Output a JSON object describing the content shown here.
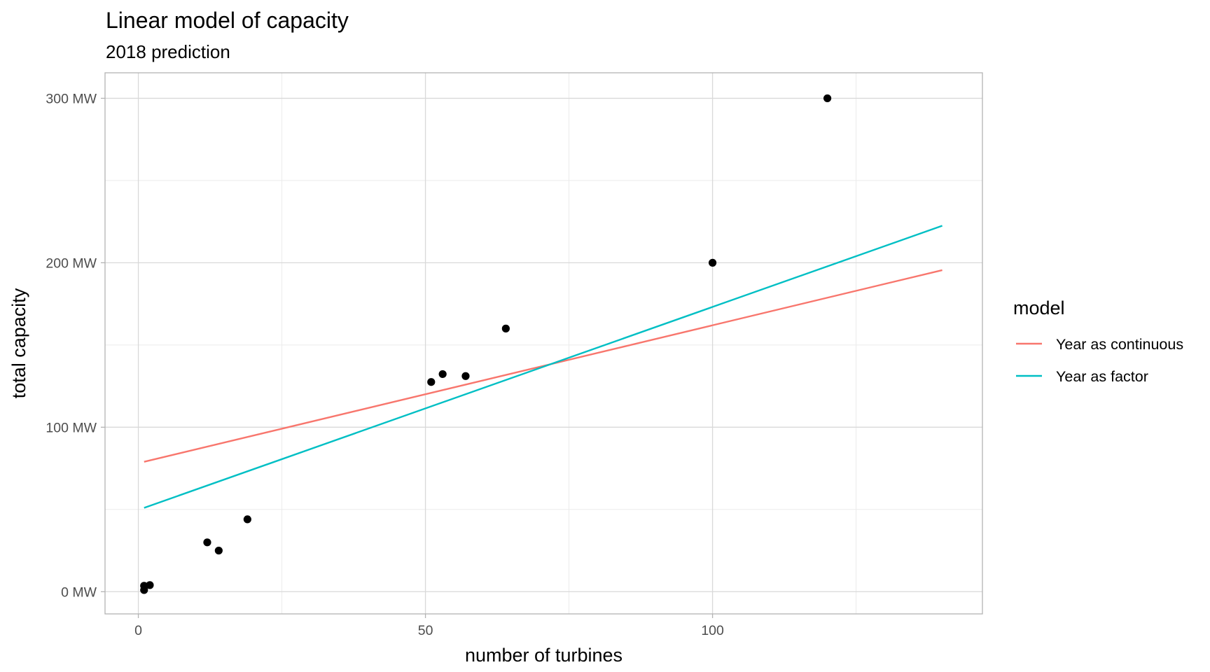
{
  "chart_data": {
    "type": "scatter",
    "title": "Linear model of capacity",
    "subtitle": "2018 prediction",
    "xlabel": "number of turbines",
    "ylabel": "total capacity",
    "xlim": [
      -5.8,
      147
    ],
    "ylim": [
      -13.5,
      315.5
    ],
    "x_ticks": [
      {
        "value": 0,
        "label": "0"
      },
      {
        "value": 50,
        "label": "50"
      },
      {
        "value": 100,
        "label": "100"
      }
    ],
    "x_minor_ticks": [
      25,
      75,
      125
    ],
    "y_ticks": [
      {
        "value": 0,
        "label": "0 MW"
      },
      {
        "value": 100,
        "label": "100 MW"
      },
      {
        "value": 200,
        "label": "200 MW"
      },
      {
        "value": 300,
        "label": "300 MW"
      }
    ],
    "y_minor_ticks": [
      50,
      150,
      250
    ],
    "grid": true,
    "points": [
      {
        "x": 1,
        "y": 1
      },
      {
        "x": 1,
        "y": 3.6
      },
      {
        "x": 2,
        "y": 4
      },
      {
        "x": 12,
        "y": 30
      },
      {
        "x": 14,
        "y": 25
      },
      {
        "x": 19,
        "y": 44
      },
      {
        "x": 51,
        "y": 127.5
      },
      {
        "x": 53,
        "y": 132.3
      },
      {
        "x": 57,
        "y": 131.1
      },
      {
        "x": 64,
        "y": 160
      },
      {
        "x": 100,
        "y": 200
      },
      {
        "x": 120,
        "y": 300
      }
    ],
    "series": [
      {
        "name": "Year as continuous",
        "color": "#f8766d",
        "x": [
          1,
          140
        ],
        "y": [
          79,
          195.5
        ]
      },
      {
        "name": "Year as factor",
        "color": "#00bfc4",
        "x": [
          1,
          140
        ],
        "y": [
          51,
          222.5
        ]
      }
    ],
    "legend": {
      "title": "model",
      "placement": "right"
    }
  }
}
